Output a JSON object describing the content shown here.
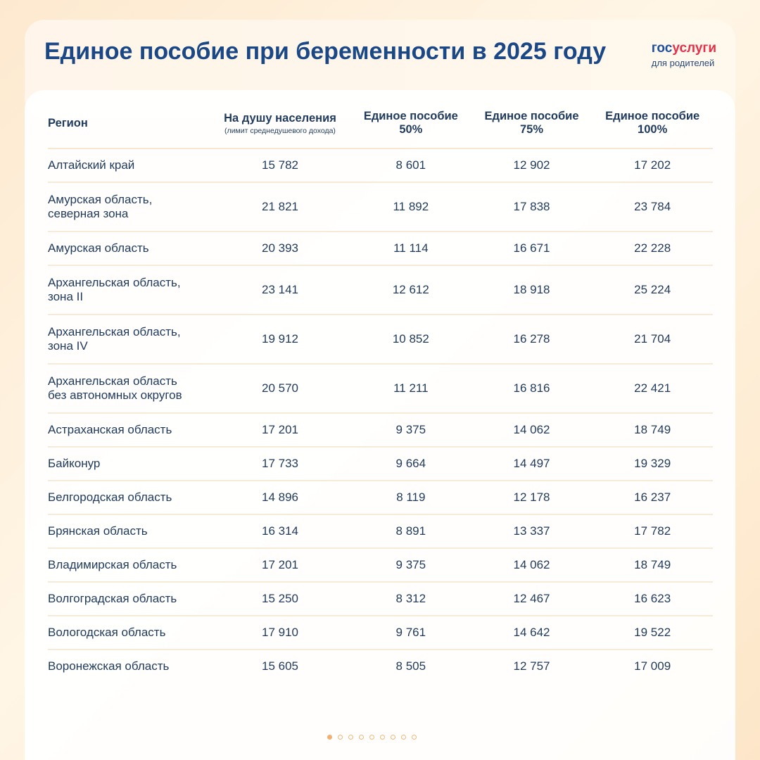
{
  "header": {
    "title": "Единое пособие при беременности в 2025 году",
    "logo": {
      "part1": "гос",
      "part2": "услуги",
      "subtitle": "для родителей"
    }
  },
  "table": {
    "columns": [
      {
        "label": [
          "Регион"
        ]
      },
      {
        "label": [
          "На душу населения"
        ],
        "note": "(лимит среднедушевого дохода)"
      },
      {
        "label": [
          "Единое пособие",
          "50%"
        ]
      },
      {
        "label": [
          "Единое пособие",
          "75%"
        ]
      },
      {
        "label": [
          "Единое пособие",
          "100%"
        ]
      }
    ],
    "rows": [
      [
        [
          "Алтайский край"
        ],
        "15 782",
        "8 601",
        "12 902",
        "17 202"
      ],
      [
        [
          "Амурская область,",
          "северная зона"
        ],
        "21 821",
        "11 892",
        "17 838",
        "23 784"
      ],
      [
        [
          "Амурская область"
        ],
        "20 393",
        "11 114",
        "16 671",
        "22 228"
      ],
      [
        [
          "Архангельская область,",
          "зона II"
        ],
        "23 141",
        "12 612",
        "18 918",
        "25 224"
      ],
      [
        [
          "Архангельская область,",
          "зона IV"
        ],
        "19 912",
        "10 852",
        "16 278",
        "21 704"
      ],
      [
        [
          "Архангельская область",
          "без автономных округов"
        ],
        "20 570",
        "11 211",
        "16 816",
        "22 421"
      ],
      [
        [
          "Астраханская область"
        ],
        "17 201",
        "9 375",
        "14 062",
        "18 749"
      ],
      [
        [
          "Байконур"
        ],
        "17 733",
        "9 664",
        "14 497",
        "19 329"
      ],
      [
        [
          "Белгородская область"
        ],
        "14 896",
        "8 119",
        "12 178",
        "16 237"
      ],
      [
        [
          "Брянская область"
        ],
        "16 314",
        "8 891",
        "13 337",
        "17 782"
      ],
      [
        [
          "Владимирская область"
        ],
        "17 201",
        "9 375",
        "14 062",
        "18 749"
      ],
      [
        [
          "Волгоградская область"
        ],
        "15 250",
        "8 312",
        "12 467",
        "16 623"
      ],
      [
        [
          "Вологодская область"
        ],
        "17 910",
        "9 761",
        "14 642",
        "19 522"
      ],
      [
        [
          "Воронежская область"
        ],
        "15 605",
        "8 505",
        "12 757",
        "17 009"
      ]
    ]
  }
}
